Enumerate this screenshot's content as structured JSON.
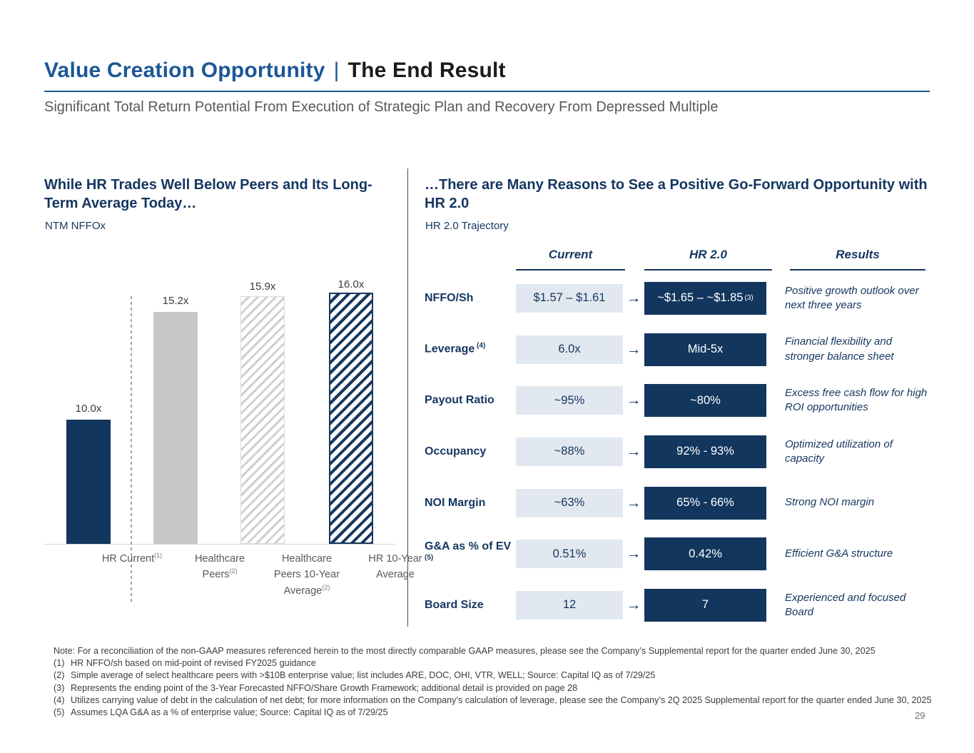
{
  "header": {
    "title_blue": "Value Creation Opportunity",
    "title_sep": "|",
    "title_black": "The End Result",
    "subtitle": "Significant Total Return Potential From Execution of Strategic Plan and Recovery From Depressed Multiple"
  },
  "left_panel": {
    "headline": "While HR Trades Well Below Peers and Its Long-Term Average Today…",
    "sublabel": "NTM NFFOx"
  },
  "right_panel": {
    "headline": "…There are Many Reasons to See a Positive Go-Forward Opportunity with HR 2.0",
    "sublabel": "HR 2.0 Trajectory"
  },
  "chart_data": {
    "type": "bar",
    "title": "NTM NFFOx",
    "categories": [
      "HR Current",
      "Healthcare Peers",
      "Healthcare Peers 10-Year Average",
      "HR 10-Year Average"
    ],
    "category_lines": [
      [
        "HR Current"
      ],
      [
        "Healthcare",
        "Peers"
      ],
      [
        "Healthcare",
        "Peers 10-Year",
        "Average"
      ],
      [
        "HR 10-Year",
        "Average"
      ]
    ],
    "category_sups": [
      "(1)",
      "(2)",
      "(2)",
      ""
    ],
    "values": [
      10.0,
      15.2,
      15.9,
      16.0
    ],
    "value_labels": [
      "10.0x",
      "15.2x",
      "15.9x",
      "16.0x"
    ],
    "bar_variants": [
      "solid-navy",
      "solid-gray",
      "hatch-gray",
      "hatch-navy"
    ],
    "axis_min": 4.0,
    "axis_max": 16.0,
    "grid": false,
    "separator_after_first_bar": true,
    "colors": {
      "hr_navy": "#12365E",
      "peer_gray": "#C7C7C7"
    }
  },
  "table": {
    "headers": [
      "Current",
      "HR 2.0",
      "Results"
    ],
    "rows": [
      {
        "label": "NFFO/Sh",
        "label_sup": "",
        "current": "$1.57 – $1.61",
        "hr2": "~$1.65 – ~$1.85",
        "hr2_sup": "(3)",
        "result": "Positive growth outlook over next three years"
      },
      {
        "label": "Leverage",
        "label_sup": "(4)",
        "current": "6.0x",
        "hr2": "Mid-5x",
        "hr2_sup": "",
        "result": "Financial flexibility and stronger balance sheet"
      },
      {
        "label": "Payout Ratio",
        "label_sup": "",
        "current": "~95%",
        "hr2": "~80%",
        "hr2_sup": "",
        "result": "Excess free cash flow for high ROI opportunities"
      },
      {
        "label": "Occupancy",
        "label_sup": "",
        "current": "~88%",
        "hr2": "92% - 93%",
        "hr2_sup": "",
        "result": "Optimized utilization of capacity"
      },
      {
        "label": "NOI Margin",
        "label_sup": "",
        "current": "~63%",
        "hr2": "65% - 66%",
        "hr2_sup": "",
        "result": "Strong NOI margin"
      },
      {
        "label": "G&A as % of EV",
        "label_sup": "(5)",
        "current": "0.51%",
        "hr2": "0.42%",
        "hr2_sup": "",
        "result": "Efficient G&A structure"
      },
      {
        "label": "Board Size",
        "label_sup": "",
        "current": "12",
        "hr2": "7",
        "hr2_sup": "",
        "result": "Experienced and focused Board"
      }
    ]
  },
  "icons": {
    "arrow_right": "→"
  },
  "footnotes": {
    "note": "Note: For a reconciliation of the non-GAAP measures referenced herein to the most directly comparable GAAP measures, please see the Company’s Supplemental report for the quarter ended June 30, 2025",
    "items": [
      {
        "marker": "(1)",
        "text": "HR NFFO/sh based on mid-point of revised FY2025 guidance"
      },
      {
        "marker": "(2)",
        "text": "Simple average of select healthcare peers with >$10B enterprise value; list includes ARE, DOC, OHI, VTR, WELL; Source: Capital IQ as of 7/29/25"
      },
      {
        "marker": "(3)",
        "text": "Represents the ending point of the 3-Year Forecasted NFFO/Share Growth Framework; additional detail is provided on page 28"
      },
      {
        "marker": "(4)",
        "text": "Utilizes carrying value of debt in the calculation of net debt; for more information on the Company’s calculation of leverage, please see the Company’s 2Q 2025 Supplemental report for the quarter ended June 30, 2025"
      },
      {
        "marker": "(5)",
        "text": "Assumes LQA G&A as a % of enterprise value; Source: Capital IQ as of 7/29/25"
      }
    ]
  },
  "page_number": "29",
  "colors": {
    "accent_blue": "#1C5796",
    "navy_text": "#14365F",
    "dark_box": "#12365E",
    "light_box": "#E2E8EF",
    "subtitle_gray": "#595959"
  }
}
